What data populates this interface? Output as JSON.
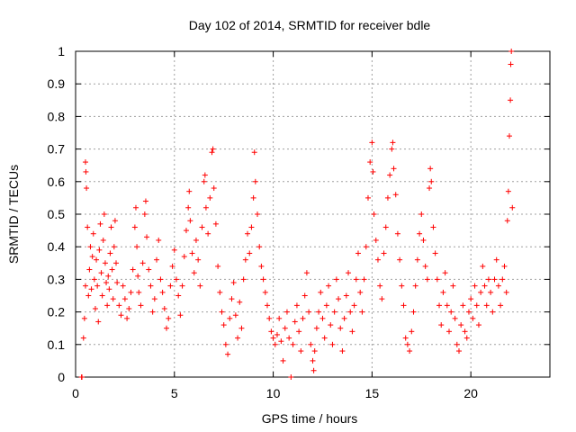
{
  "chart_data": {
    "type": "scatter",
    "title": "Day 102 of 2014, SRMTID for receiver bdle",
    "xlabel": "GPS time / hours",
    "ylabel": "SRMTID / TECUs",
    "xlim": [
      0,
      24
    ],
    "ylim": [
      0,
      1
    ],
    "xticks": [
      0,
      5,
      10,
      15,
      20
    ],
    "xtick_labels": [
      "0",
      "5",
      "10",
      "15",
      "20"
    ],
    "yticks": [
      0,
      0.1,
      0.2,
      0.3,
      0.4,
      0.5,
      0.6,
      0.7,
      0.8,
      0.9,
      1
    ],
    "ytick_labels": [
      "0",
      "0.1",
      "0.2",
      "0.3",
      "0.4",
      "0.5",
      "0.6",
      "0.7",
      "0.8",
      "0.9",
      "1"
    ],
    "grid": true,
    "series": [
      {
        "name": "SRMTID",
        "color": "#ff0000",
        "marker": "plus",
        "points": [
          [
            0.3,
            0.0
          ],
          [
            0.32,
            0.0
          ],
          [
            0.4,
            0.12
          ],
          [
            0.45,
            0.18
          ],
          [
            0.5,
            0.28
          ],
          [
            0.5,
            0.66
          ],
          [
            0.52,
            0.63
          ],
          [
            0.55,
            0.58
          ],
          [
            0.6,
            0.46
          ],
          [
            0.65,
            0.25
          ],
          [
            0.7,
            0.33
          ],
          [
            0.75,
            0.4
          ],
          [
            0.8,
            0.27
          ],
          [
            0.85,
            0.37
          ],
          [
            0.9,
            0.44
          ],
          [
            0.95,
            0.3
          ],
          [
            1.0,
            0.21
          ],
          [
            1.05,
            0.36
          ],
          [
            1.1,
            0.28
          ],
          [
            1.15,
            0.17
          ],
          [
            1.2,
            0.39
          ],
          [
            1.25,
            0.47
          ],
          [
            1.3,
            0.32
          ],
          [
            1.35,
            0.25
          ],
          [
            1.4,
            0.42
          ],
          [
            1.45,
            0.5
          ],
          [
            1.5,
            0.35
          ],
          [
            1.55,
            0.29
          ],
          [
            1.6,
            0.22
          ],
          [
            1.65,
            0.31
          ],
          [
            1.7,
            0.27
          ],
          [
            1.75,
            0.38
          ],
          [
            1.8,
            0.46
          ],
          [
            1.85,
            0.33
          ],
          [
            1.9,
            0.24
          ],
          [
            1.95,
            0.4
          ],
          [
            2.0,
            0.48
          ],
          [
            2.05,
            0.35
          ],
          [
            2.1,
            0.29
          ],
          [
            2.2,
            0.22
          ],
          [
            2.3,
            0.19
          ],
          [
            2.4,
            0.28
          ],
          [
            2.5,
            0.24
          ],
          [
            2.6,
            0.18
          ],
          [
            2.7,
            0.21
          ],
          [
            2.8,
            0.26
          ],
          [
            2.9,
            0.33
          ],
          [
            3.0,
            0.46
          ],
          [
            3.05,
            0.52
          ],
          [
            3.1,
            0.4
          ],
          [
            3.15,
            0.31
          ],
          [
            3.2,
            0.26
          ],
          [
            3.3,
            0.22
          ],
          [
            3.4,
            0.35
          ],
          [
            3.5,
            0.5
          ],
          [
            3.55,
            0.54
          ],
          [
            3.6,
            0.43
          ],
          [
            3.7,
            0.33
          ],
          [
            3.8,
            0.28
          ],
          [
            3.9,
            0.2
          ],
          [
            4.0,
            0.24
          ],
          [
            4.1,
            0.36
          ],
          [
            4.2,
            0.42
          ],
          [
            4.3,
            0.3
          ],
          [
            4.4,
            0.26
          ],
          [
            4.5,
            0.21
          ],
          [
            4.6,
            0.15
          ],
          [
            4.7,
            0.18
          ],
          [
            4.8,
            0.28
          ],
          [
            4.9,
            0.34
          ],
          [
            5.0,
            0.39
          ],
          [
            5.1,
            0.3
          ],
          [
            5.2,
            0.25
          ],
          [
            5.3,
            0.19
          ],
          [
            5.4,
            0.28
          ],
          [
            5.5,
            0.37
          ],
          [
            5.6,
            0.45
          ],
          [
            5.7,
            0.52
          ],
          [
            5.75,
            0.57
          ],
          [
            5.8,
            0.48
          ],
          [
            5.9,
            0.38
          ],
          [
            6.0,
            0.32
          ],
          [
            6.1,
            0.42
          ],
          [
            6.2,
            0.36
          ],
          [
            6.3,
            0.28
          ],
          [
            6.4,
            0.46
          ],
          [
            6.5,
            0.6
          ],
          [
            6.55,
            0.62
          ],
          [
            6.6,
            0.52
          ],
          [
            6.7,
            0.44
          ],
          [
            6.8,
            0.55
          ],
          [
            6.9,
            0.69
          ],
          [
            6.95,
            0.7
          ],
          [
            7.0,
            0.58
          ],
          [
            7.1,
            0.47
          ],
          [
            7.2,
            0.34
          ],
          [
            7.3,
            0.26
          ],
          [
            7.4,
            0.2
          ],
          [
            7.5,
            0.16
          ],
          [
            7.6,
            0.1
          ],
          [
            7.7,
            0.07
          ],
          [
            7.8,
            0.18
          ],
          [
            7.9,
            0.24
          ],
          [
            8.0,
            0.29
          ],
          [
            8.1,
            0.19
          ],
          [
            8.2,
            0.12
          ],
          [
            8.3,
            0.23
          ],
          [
            8.4,
            0.15
          ],
          [
            8.5,
            0.3
          ],
          [
            8.6,
            0.36
          ],
          [
            8.7,
            0.44
          ],
          [
            8.8,
            0.38
          ],
          [
            8.9,
            0.46
          ],
          [
            9.0,
            0.55
          ],
          [
            9.05,
            0.69
          ],
          [
            9.1,
            0.6
          ],
          [
            9.2,
            0.5
          ],
          [
            9.3,
            0.4
          ],
          [
            9.4,
            0.34
          ],
          [
            9.5,
            0.3
          ],
          [
            9.6,
            0.26
          ],
          [
            9.7,
            0.22
          ],
          [
            9.8,
            0.18
          ],
          [
            9.9,
            0.14
          ],
          [
            10.0,
            0.12
          ],
          [
            10.1,
            0.1
          ],
          [
            10.2,
            0.13
          ],
          [
            10.3,
            0.18
          ],
          [
            10.4,
            0.11
          ],
          [
            10.5,
            0.05
          ],
          [
            10.6,
            0.15
          ],
          [
            10.7,
            0.2
          ],
          [
            10.8,
            0.12
          ],
          [
            10.9,
            0.0
          ],
          [
            11.0,
            0.1
          ],
          [
            11.1,
            0.17
          ],
          [
            11.2,
            0.22
          ],
          [
            11.3,
            0.14
          ],
          [
            11.4,
            0.08
          ],
          [
            11.5,
            0.18
          ],
          [
            11.6,
            0.25
          ],
          [
            11.7,
            0.32
          ],
          [
            11.8,
            0.2
          ],
          [
            11.9,
            0.1
          ],
          [
            12.0,
            0.05
          ],
          [
            12.05,
            0.02
          ],
          [
            12.1,
            0.08
          ],
          [
            12.2,
            0.15
          ],
          [
            12.3,
            0.2
          ],
          [
            12.4,
            0.26
          ],
          [
            12.5,
            0.18
          ],
          [
            12.6,
            0.12
          ],
          [
            12.7,
            0.22
          ],
          [
            12.8,
            0.28
          ],
          [
            12.9,
            0.16
          ],
          [
            13.0,
            0.1
          ],
          [
            13.1,
            0.2
          ],
          [
            13.2,
            0.3
          ],
          [
            13.3,
            0.24
          ],
          [
            13.4,
            0.15
          ],
          [
            13.5,
            0.08
          ],
          [
            13.6,
            0.18
          ],
          [
            13.7,
            0.25
          ],
          [
            13.8,
            0.32
          ],
          [
            13.9,
            0.2
          ],
          [
            14.0,
            0.14
          ],
          [
            14.1,
            0.22
          ],
          [
            14.2,
            0.3
          ],
          [
            14.3,
            0.38
          ],
          [
            14.4,
            0.26
          ],
          [
            14.5,
            0.2
          ],
          [
            14.6,
            0.3
          ],
          [
            14.7,
            0.4
          ],
          [
            14.8,
            0.55
          ],
          [
            14.9,
            0.66
          ],
          [
            15.0,
            0.72
          ],
          [
            15.05,
            0.63
          ],
          [
            15.1,
            0.5
          ],
          [
            15.2,
            0.42
          ],
          [
            15.3,
            0.36
          ],
          [
            15.4,
            0.28
          ],
          [
            15.5,
            0.24
          ],
          [
            15.6,
            0.38
          ],
          [
            15.7,
            0.46
          ],
          [
            15.8,
            0.55
          ],
          [
            15.9,
            0.62
          ],
          [
            16.0,
            0.7
          ],
          [
            16.05,
            0.72
          ],
          [
            16.1,
            0.64
          ],
          [
            16.2,
            0.56
          ],
          [
            16.3,
            0.44
          ],
          [
            16.4,
            0.36
          ],
          [
            16.5,
            0.28
          ],
          [
            16.6,
            0.22
          ],
          [
            16.7,
            0.12
          ],
          [
            16.8,
            0.1
          ],
          [
            16.9,
            0.08
          ],
          [
            17.0,
            0.14
          ],
          [
            17.1,
            0.2
          ],
          [
            17.2,
            0.28
          ],
          [
            17.3,
            0.36
          ],
          [
            17.4,
            0.44
          ],
          [
            17.5,
            0.5
          ],
          [
            17.6,
            0.42
          ],
          [
            17.7,
            0.34
          ],
          [
            17.8,
            0.3
          ],
          [
            17.9,
            0.58
          ],
          [
            17.95,
            0.64
          ],
          [
            18.0,
            0.6
          ],
          [
            18.1,
            0.46
          ],
          [
            18.2,
            0.38
          ],
          [
            18.3,
            0.3
          ],
          [
            18.4,
            0.22
          ],
          [
            18.5,
            0.16
          ],
          [
            18.6,
            0.26
          ],
          [
            18.7,
            0.32
          ],
          [
            18.8,
            0.22
          ],
          [
            18.9,
            0.14
          ],
          [
            19.0,
            0.2
          ],
          [
            19.1,
            0.28
          ],
          [
            19.2,
            0.18
          ],
          [
            19.3,
            0.1
          ],
          [
            19.4,
            0.08
          ],
          [
            19.5,
            0.16
          ],
          [
            19.6,
            0.22
          ],
          [
            19.7,
            0.14
          ],
          [
            19.8,
            0.12
          ],
          [
            19.9,
            0.2
          ],
          [
            20.0,
            0.24
          ],
          [
            20.1,
            0.18
          ],
          [
            20.2,
            0.28
          ],
          [
            20.3,
            0.22
          ],
          [
            20.4,
            0.16
          ],
          [
            20.5,
            0.26
          ],
          [
            20.6,
            0.34
          ],
          [
            20.7,
            0.28
          ],
          [
            20.8,
            0.22
          ],
          [
            20.9,
            0.3
          ],
          [
            21.0,
            0.26
          ],
          [
            21.1,
            0.2
          ],
          [
            21.2,
            0.3
          ],
          [
            21.3,
            0.36
          ],
          [
            21.4,
            0.28
          ],
          [
            21.5,
            0.22
          ],
          [
            21.6,
            0.3
          ],
          [
            21.7,
            0.34
          ],
          [
            21.8,
            0.26
          ],
          [
            21.85,
            0.48
          ],
          [
            21.9,
            0.57
          ],
          [
            21.95,
            0.74
          ],
          [
            22.0,
            0.85
          ],
          [
            22.02,
            0.96
          ],
          [
            22.05,
            1.0
          ],
          [
            22.1,
            0.52
          ]
        ]
      }
    ]
  }
}
